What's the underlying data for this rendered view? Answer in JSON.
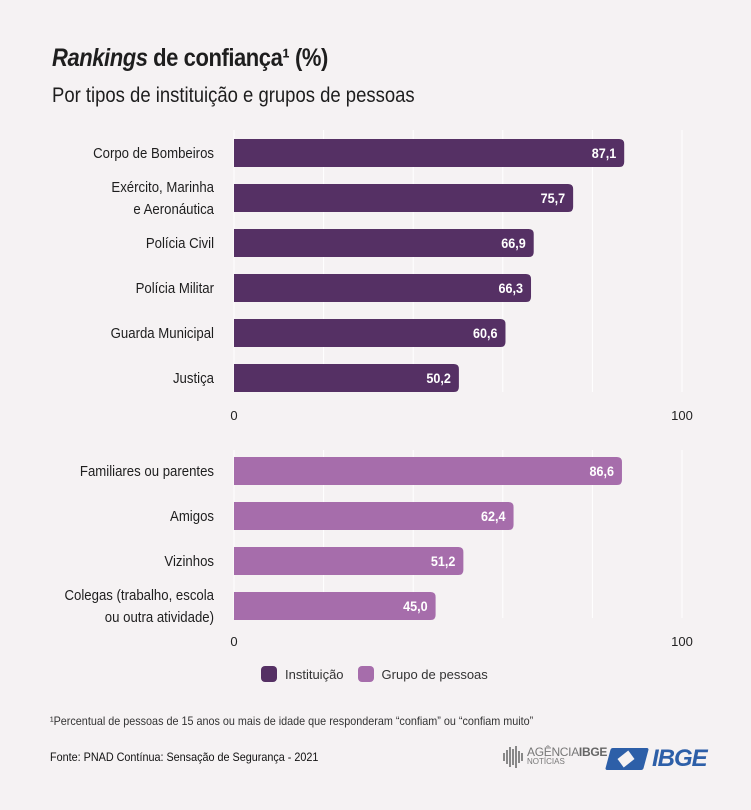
{
  "header": {
    "title_italic": "Rankings",
    "title_rest": " de confiança¹ (%)",
    "subtitle": "Por tipos de instituição e grupos de pessoas"
  },
  "colors": {
    "instituicao": "#553064",
    "grupo": "#a66dab",
    "grid": "#ffffff",
    "label": "#1e1e1e",
    "value_label": "#ffffff"
  },
  "chart_data": [
    {
      "type": "bar",
      "orientation": "horizontal",
      "series_name": "Instituição",
      "categories": [
        "Corpo de Bombeiros",
        "Exército, Marinha\ne Aeronáutica",
        "Polícia Civil",
        "Polícia Militar",
        "Guarda Municipal",
        "Justiça"
      ],
      "values": [
        87.1,
        75.7,
        66.9,
        66.3,
        60.6,
        50.2
      ],
      "value_labels": [
        "87,1",
        "75,7",
        "66,9",
        "66,3",
        "60,6",
        "50,2"
      ],
      "xlim": [
        0,
        100
      ],
      "x_tick_labels": [
        "0",
        "100"
      ],
      "gridlines_every": 20,
      "grid": true
    },
    {
      "type": "bar",
      "orientation": "horizontal",
      "series_name": "Grupo de pessoas",
      "categories": [
        "Familiares ou parentes",
        "Amigos",
        "Vizinhos",
        "Colegas (trabalho, escola\nou outra atividade)"
      ],
      "values": [
        86.6,
        62.4,
        51.2,
        45.0
      ],
      "value_labels": [
        "86,6",
        "62,4",
        "51,2",
        "45,0"
      ],
      "xlim": [
        0,
        100
      ],
      "x_tick_labels": [
        "0",
        "100"
      ],
      "gridlines_every": 20,
      "grid": true
    }
  ],
  "legend": {
    "placement": "bottom-center",
    "items": [
      {
        "label": "Instituição",
        "color": "#553064"
      },
      {
        "label": "Grupo de pessoas",
        "color": "#a66dab"
      }
    ]
  },
  "footer": {
    "footnote": "¹Percentual de pessoas de 15 anos ou mais de idade que responderam “confiam” ou “confiam muito”",
    "source": "Fonte: PNAD Contínua: Sensação de Segurança - 2021",
    "agencia_line1a": "AGÊNCIA",
    "agencia_line1b": "IBGE",
    "agencia_line2": "NOTÍCIAS",
    "ibge_logo_text": "IBGE"
  }
}
